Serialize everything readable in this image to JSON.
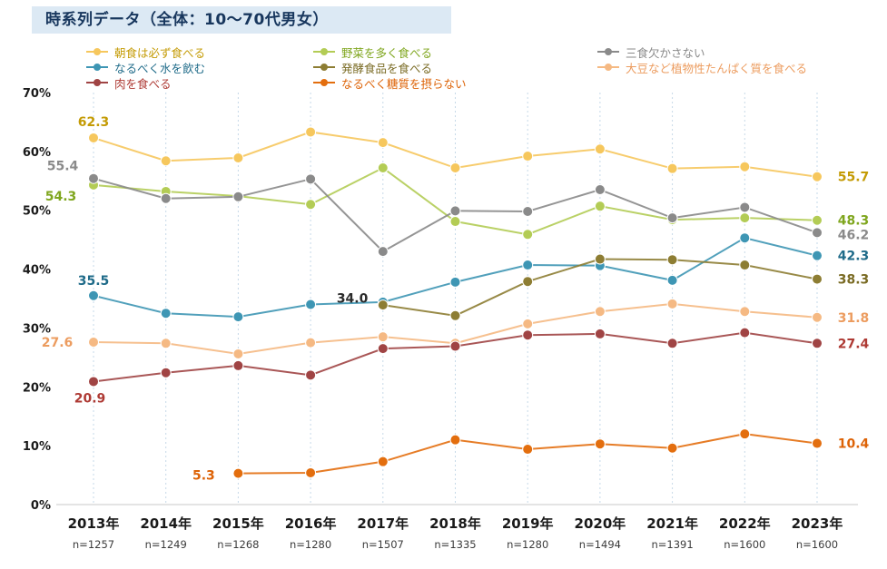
{
  "title": "時系列データ（全体：10〜70代男女）",
  "chart_data": {
    "type": "line",
    "title": "時系列データ（全体：10〜70代男女）",
    "x_categories": [
      "2013年",
      "2014年",
      "2015年",
      "2016年",
      "2017年",
      "2018年",
      "2019年",
      "2020年",
      "2021年",
      "2022年",
      "2023年"
    ],
    "n_labels": [
      "n=1257",
      "n=1249",
      "n=1268",
      "n=1280",
      "n=1507",
      "n=1335",
      "n=1280",
      "n=1494",
      "n=1391",
      "n=1600",
      "n=1600"
    ],
    "y_ticks": [
      70,
      60,
      50,
      40,
      30,
      20,
      10,
      0
    ],
    "ylim": [
      0,
      70
    ],
    "grid": "vertical-dashed",
    "grid_color": "#C6D9E8",
    "legend_position": "top",
    "legend_columns": [
      [
        0,
        3,
        6
      ],
      [
        1,
        4,
        7
      ],
      [
        2,
        5
      ]
    ],
    "series": [
      {
        "key": "breakfast",
        "name": "朝食は必ず食べる",
        "color": "#F6C75D",
        "label_color": "#C49B05",
        "values": [
          62.3,
          58.4,
          58.9,
          63.3,
          61.5,
          57.2,
          59.2,
          60.4,
          57.1,
          57.4,
          55.7
        ],
        "labels": [
          {
            "i": 0,
            "dx": 0,
            "dy": -13
          },
          {
            "i": 10,
            "dx": 40,
            "dy": 5
          }
        ]
      },
      {
        "key": "vegetables",
        "name": "野菜を多く食べる",
        "color": "#B3CC55",
        "label_color": "#7FA61E",
        "values": [
          54.3,
          53.2,
          52.4,
          51.0,
          57.2,
          48.1,
          45.9,
          50.7,
          48.4,
          48.7,
          48.3
        ],
        "labels": [
          {
            "i": 0,
            "dx": -36,
            "dy": 17
          },
          {
            "i": 10,
            "dx": 40,
            "dy": 5
          }
        ]
      },
      {
        "key": "three-meals",
        "name": "三食欠かさない",
        "color": "#8A8A8A",
        "label_color": "#8A8A8A",
        "values": [
          55.4,
          52.0,
          52.3,
          55.3,
          43.0,
          49.9,
          49.8,
          53.5,
          48.7,
          50.5,
          46.2
        ],
        "labels": [
          {
            "i": 0,
            "dx": -34,
            "dy": -9
          },
          {
            "i": 10,
            "dx": 40,
            "dy": 7
          }
        ]
      },
      {
        "key": "water",
        "name": "なるべく水を飲む",
        "color": "#3E96B4",
        "label_color": "#1F6B89",
        "values": [
          35.5,
          32.5,
          31.9,
          34.0,
          34.4,
          37.8,
          40.7,
          40.6,
          38.1,
          45.3,
          42.3
        ],
        "labels": [
          {
            "i": 0,
            "dx": 0,
            "dy": -12
          },
          {
            "i": 3,
            "dx": 46,
            "dy": -2,
            "color": "#2B2B2B"
          },
          {
            "i": 10,
            "dx": 40,
            "dy": 5
          }
        ]
      },
      {
        "key": "fermented",
        "name": "発酵食品を食べる",
        "color": "#8D7D33",
        "label_color": "#7A6B24",
        "values": [
          null,
          null,
          null,
          null,
          33.9,
          32.1,
          37.9,
          41.7,
          41.6,
          40.7,
          38.3
        ],
        "labels": [
          {
            "i": 10,
            "dx": 40,
            "dy": 5
          }
        ]
      },
      {
        "key": "soy-protein",
        "name": "大豆など植物性たんぱく質を食べる",
        "color": "#F5B983",
        "label_color": "#EC9C5F",
        "values": [
          27.6,
          27.4,
          25.6,
          27.5,
          28.5,
          27.4,
          30.7,
          32.8,
          34.1,
          32.8,
          31.8
        ],
        "labels": [
          {
            "i": 0,
            "dx": -40,
            "dy": 5
          },
          {
            "i": 10,
            "dx": 40,
            "dy": 5
          }
        ]
      },
      {
        "key": "meat",
        "name": "肉を食べる",
        "color": "#A04444",
        "label_color": "#AE3A34",
        "values": [
          20.9,
          22.4,
          23.6,
          22.0,
          26.5,
          26.9,
          28.8,
          29.0,
          27.4,
          29.2,
          27.4
        ],
        "labels": [
          {
            "i": 0,
            "dx": -4,
            "dy": 23
          },
          {
            "i": 10,
            "dx": 40,
            "dy": 5
          }
        ]
      },
      {
        "key": "low-sugar",
        "name": "なるべく糖質を摂らない",
        "color": "#E36E0E",
        "label_color": "#DD6307",
        "values": [
          null,
          null,
          5.3,
          5.4,
          7.3,
          11.0,
          9.4,
          10.3,
          9.6,
          12.0,
          10.4
        ],
        "labels": [
          {
            "i": 2,
            "dx": -38,
            "dy": 7
          },
          {
            "i": 10,
            "dx": 40,
            "dy": 5
          }
        ]
      }
    ]
  }
}
